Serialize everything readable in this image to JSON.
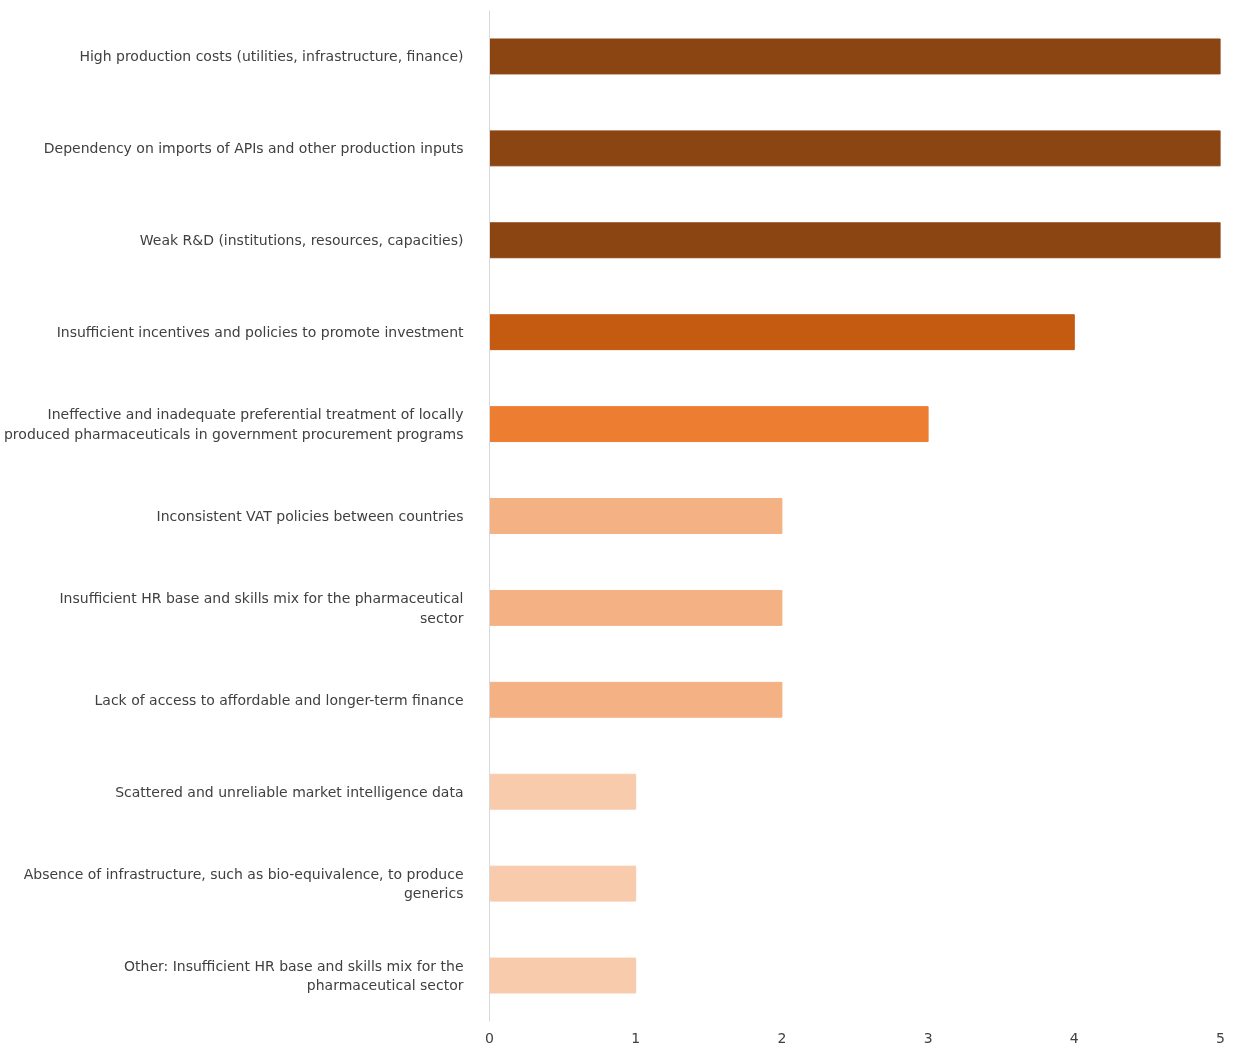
{
  "chart_data": {
    "type": "bar",
    "orientation": "horizontal",
    "categories": [
      "High production costs (utilities, infrastructure, finance)",
      "Dependency on imports of APIs and other production inputs",
      "Weak R&D (institutions, resources, capacities)",
      "Insufficient incentives and policies to promote investment",
      "Ineffective and inadequate preferential treatment of locally produced pharmaceuticals in government procurement programs",
      "Inconsistent VAT policies between countries",
      "Insufficient HR base and skills mix for the pharmaceutical sector",
      "Lack of access to affordable and longer-term finance",
      "Scattered and unreliable market intelligence data",
      "Absence of infrastructure, such as bio-equivalence, to produce generics",
      "Other: Insufficient HR base and skills mix for the pharmaceutical sector"
    ],
    "values": [
      5,
      5,
      5,
      4,
      3,
      2,
      2,
      2,
      1,
      1,
      1
    ],
    "colors": [
      "#8b4513",
      "#8b4513",
      "#8b4513",
      "#c55a11",
      "#ed7d31",
      "#f4b183",
      "#f4b183",
      "#f4b183",
      "#f8cbad",
      "#f8cbad",
      "#f8cbad"
    ],
    "xlim": [
      0,
      5
    ],
    "xticks": [
      0,
      1,
      2,
      3,
      4,
      5
    ],
    "grid": false
  }
}
